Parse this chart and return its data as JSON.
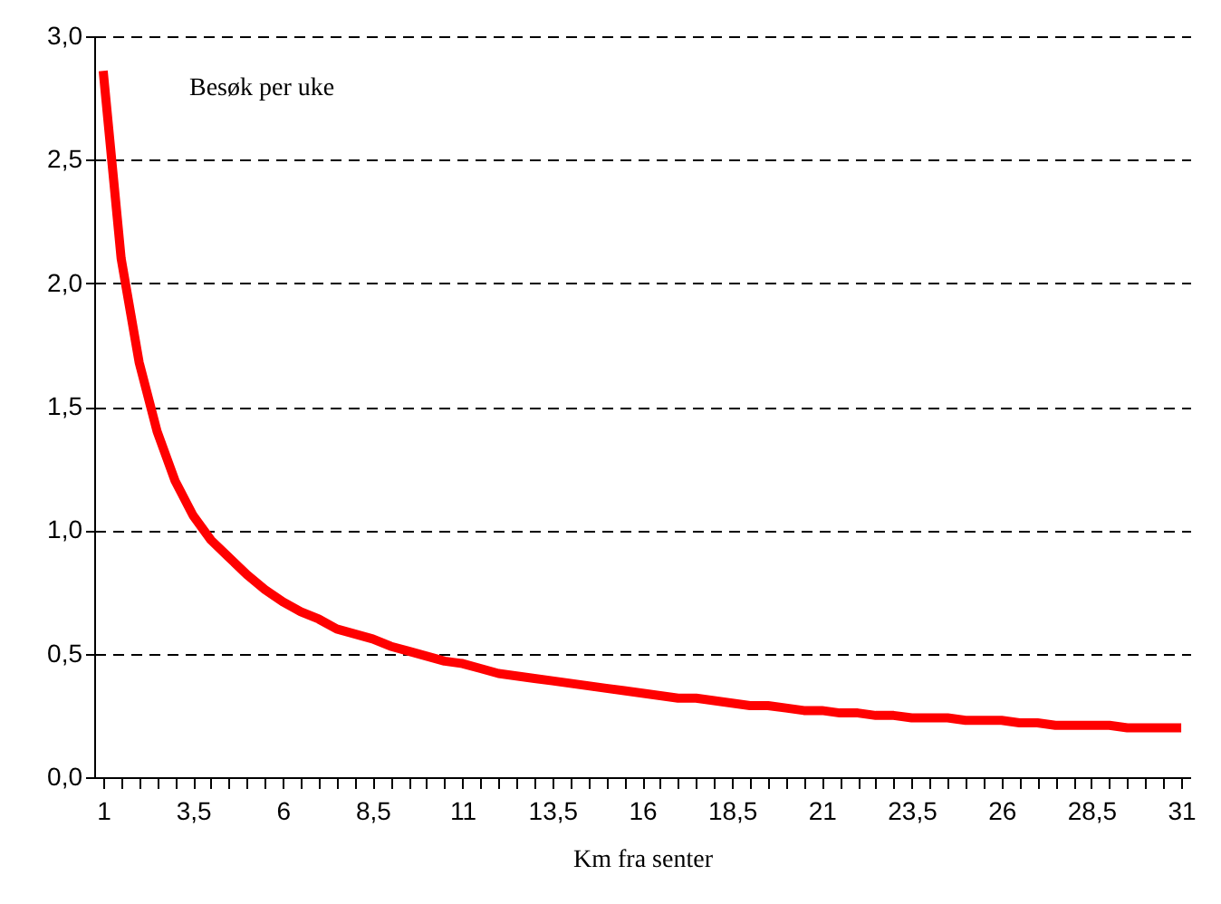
{
  "chart_data": {
    "type": "line",
    "ylabel": "Besøk per uke",
    "xlabel": "Km fra senter",
    "x": [
      1,
      1.5,
      2,
      2.5,
      3,
      3.5,
      4,
      4.5,
      5,
      5.5,
      6,
      6.5,
      7,
      7.5,
      8,
      8.5,
      9,
      9.5,
      10,
      10.5,
      11,
      11.5,
      12,
      12.5,
      13,
      13.5,
      14,
      14.5,
      15,
      15.5,
      16,
      16.5,
      17,
      17.5,
      18,
      18.5,
      19,
      19.5,
      20,
      20.5,
      21,
      21.5,
      22,
      22.5,
      23,
      23.5,
      24,
      24.5,
      25,
      25.5,
      26,
      26.5,
      27,
      27.5,
      28,
      28.5,
      29,
      29.5,
      30,
      30.5,
      31
    ],
    "series": [
      {
        "color": "#ff0000",
        "values": [
          2.86,
          2.1,
          1.68,
          1.4,
          1.2,
          1.06,
          0.96,
          0.89,
          0.82,
          0.76,
          0.71,
          0.67,
          0.64,
          0.6,
          0.58,
          0.56,
          0.53,
          0.51,
          0.49,
          0.47,
          0.46,
          0.44,
          0.42,
          0.41,
          0.4,
          0.39,
          0.38,
          0.37,
          0.36,
          0.35,
          0.34,
          0.33,
          0.32,
          0.32,
          0.31,
          0.3,
          0.29,
          0.29,
          0.28,
          0.27,
          0.27,
          0.26,
          0.26,
          0.25,
          0.25,
          0.24,
          0.24,
          0.24,
          0.23,
          0.23,
          0.23,
          0.22,
          0.22,
          0.21,
          0.21,
          0.21,
          0.21,
          0.2,
          0.2,
          0.2,
          0.2
        ]
      }
    ],
    "xlim": [
      0.75,
      31.25
    ],
    "xticks": [
      1,
      {
        "value": 1.5,
        "label": null
      },
      {
        "value": 2,
        "label": null
      },
      {
        "value": 2.5,
        "label": null
      },
      {
        "value": 3,
        "label": null
      },
      {
        "value": 3.5,
        "label": "3,5"
      },
      {
        "value": 4,
        "label": null
      },
      {
        "value": 4.5,
        "label": null
      },
      {
        "value": 5,
        "label": null
      },
      {
        "value": 5.5,
        "label": null
      },
      6,
      {
        "value": 6.5,
        "label": null
      },
      {
        "value": 7,
        "label": null
      },
      {
        "value": 7.5,
        "label": null
      },
      {
        "value": 8,
        "label": null
      },
      {
        "value": 8.5,
        "label": "8,5"
      },
      {
        "value": 9,
        "label": null
      },
      {
        "value": 9.5,
        "label": null
      },
      {
        "value": 10,
        "label": null
      },
      {
        "value": 10.5,
        "label": null
      },
      11,
      {
        "value": 11.5,
        "label": null
      },
      {
        "value": 12,
        "label": null
      },
      {
        "value": 12.5,
        "label": null
      },
      {
        "value": 13,
        "label": null
      },
      {
        "value": 13.5,
        "label": "13,5"
      },
      {
        "value": 14,
        "label": null
      },
      {
        "value": 14.5,
        "label": null
      },
      {
        "value": 15,
        "label": null
      },
      {
        "value": 15.5,
        "label": null
      },
      16,
      {
        "value": 16.5,
        "label": null
      },
      {
        "value": 17,
        "label": null
      },
      {
        "value": 17.5,
        "label": null
      },
      {
        "value": 18,
        "label": null
      },
      {
        "value": 18.5,
        "label": "18,5"
      },
      {
        "value": 19,
        "label": null
      },
      {
        "value": 19.5,
        "label": null
      },
      {
        "value": 20,
        "label": null
      },
      {
        "value": 20.5,
        "label": null
      },
      21,
      {
        "value": 21.5,
        "label": null
      },
      {
        "value": 22,
        "label": null
      },
      {
        "value": 22.5,
        "label": null
      },
      {
        "value": 23,
        "label": null
      },
      {
        "value": 23.5,
        "label": "23,5"
      },
      {
        "value": 24,
        "label": null
      },
      {
        "value": 24.5,
        "label": null
      },
      {
        "value": 25,
        "label": null
      },
      {
        "value": 25.5,
        "label": null
      },
      26,
      {
        "value": 26.5,
        "label": null
      },
      {
        "value": 27,
        "label": null
      },
      {
        "value": 27.5,
        "label": null
      },
      {
        "value": 28,
        "label": null
      },
      {
        "value": 28.5,
        "label": "28,5"
      },
      {
        "value": 29,
        "label": null
      },
      {
        "value": 29.5,
        "label": null
      },
      {
        "value": 30,
        "label": null
      },
      {
        "value": 30.5,
        "label": null
      },
      31
    ],
    "ylim": [
      0,
      3
    ],
    "yticks": [
      {
        "value": 0,
        "label": "0,0"
      },
      {
        "value": 0.5,
        "label": "0,5"
      },
      {
        "value": 1,
        "label": "1,0"
      },
      {
        "value": 1.5,
        "label": "1,5"
      },
      {
        "value": 2,
        "label": "2,0"
      },
      {
        "value": 2.5,
        "label": "2,5"
      },
      {
        "value": 3,
        "label": "3,0"
      }
    ],
    "grid": "y",
    "line_style": "solid",
    "marker": "none"
  }
}
